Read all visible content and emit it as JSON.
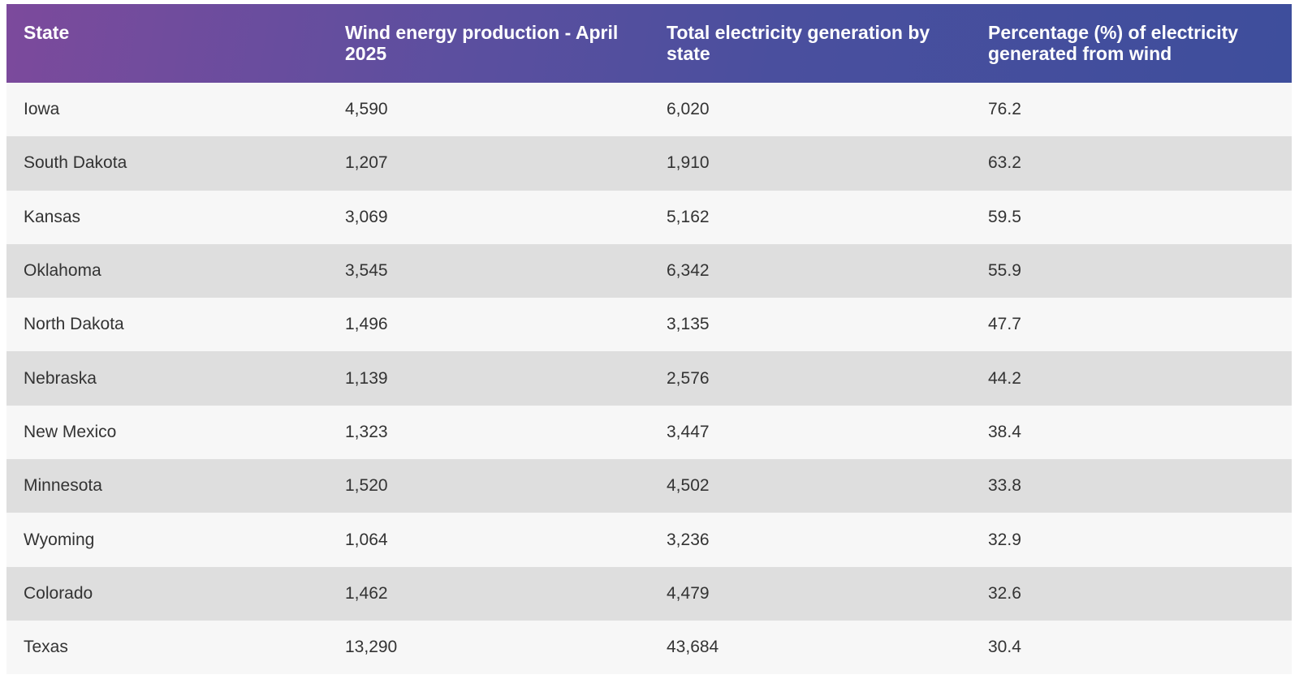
{
  "chart_data": {
    "type": "table",
    "columns": [
      "State",
      "Wind energy production - April 2025",
      "Total electricity generation by state",
      "Percentage (%) of electricity generated from wind"
    ],
    "rows": [
      [
        "Iowa",
        "4,590",
        "6,020",
        "76.2"
      ],
      [
        "South Dakota",
        "1,207",
        "1,910",
        "63.2"
      ],
      [
        "Kansas",
        "3,069",
        "5,162",
        "59.5"
      ],
      [
        "Oklahoma",
        "3,545",
        "6,342",
        "55.9"
      ],
      [
        "North Dakota",
        "1,496",
        "3,135",
        "47.7"
      ],
      [
        "Nebraska",
        "1,139",
        "2,576",
        "44.2"
      ],
      [
        "New Mexico",
        "1,323",
        "3,447",
        "38.4"
      ],
      [
        "Minnesota",
        "1,520",
        "4,502",
        "33.8"
      ],
      [
        "Wyoming",
        "1,064",
        "3,236",
        "32.9"
      ],
      [
        "Colorado",
        "1,462",
        "4,479",
        "32.6"
      ],
      [
        "Texas",
        "13,290",
        "43,684",
        "30.4"
      ]
    ]
  },
  "colors": {
    "header_gradient_start": "#7c4a9c",
    "header_gradient_end": "#3e4e9c",
    "row_light": "#f7f7f7",
    "row_dark": "#dedede",
    "text": "#333333"
  }
}
